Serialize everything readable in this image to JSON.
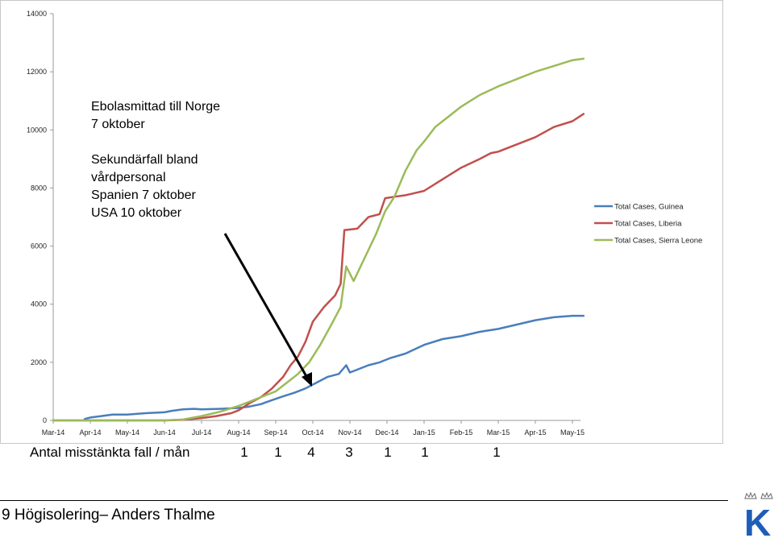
{
  "chart_data": {
    "type": "line",
    "y_ticks": [
      "0",
      "2000",
      "4000",
      "6000",
      "8000",
      "10000",
      "12000",
      "14000"
    ],
    "ylim": [
      0,
      14000
    ],
    "x_ticks": [
      "Mar-14",
      "Apr-14",
      "May-14",
      "Jun-14",
      "Jul-14",
      "Aug-14",
      "Sep-14",
      "Oct-14",
      "Nov-14",
      "Dec-14",
      "Jan-15",
      "Feb-15",
      "Mar-15",
      "Apr-15",
      "May-15"
    ],
    "legend_position": "right",
    "series": [
      {
        "name": "Total Cases, Guinea",
        "color": "#4a7ebb",
        "x": [
          0.85,
          1.0,
          1.3,
          1.6,
          2.0,
          2.5,
          3.0,
          3.2,
          3.5,
          3.8,
          4.0,
          4.5,
          5.0,
          5.3,
          5.6,
          5.9,
          6.2,
          6.5,
          6.8,
          7.1,
          7.4,
          7.7,
          7.9,
          8.0,
          8.5,
          8.8,
          9.1,
          9.5,
          10.0,
          10.5,
          11.0,
          11.5,
          12.0,
          12.5,
          13.0,
          13.5,
          14.0,
          14.3
        ],
        "y": [
          50,
          100,
          150,
          200,
          200,
          250,
          280,
          330,
          380,
          400,
          380,
          400,
          430,
          480,
          560,
          700,
          830,
          950,
          1100,
          1300,
          1500,
          1600,
          1900,
          1650,
          1900,
          2000,
          2150,
          2300,
          2600,
          2800,
          2900,
          3050,
          3150,
          3300,
          3450,
          3550,
          3600,
          3600
        ]
      },
      {
        "name": "Total Cases, Liberia",
        "color": "#c0504d",
        "x": [
          0,
          3.0,
          3.5,
          4.0,
          4.4,
          4.8,
          5.0,
          5.3,
          5.6,
          5.9,
          6.2,
          6.4,
          6.6,
          6.8,
          7.0,
          7.3,
          7.6,
          7.75,
          7.85,
          8.2,
          8.5,
          8.8,
          8.95,
          9.2,
          9.5,
          10.0,
          10.5,
          11.0,
          11.5,
          11.8,
          12.0,
          12.5,
          13.0,
          13.5,
          14.0,
          14.3
        ],
        "y": [
          0,
          0,
          20,
          80,
          150,
          250,
          350,
          600,
          800,
          1100,
          1500,
          1900,
          2200,
          2700,
          3400,
          3900,
          4300,
          4700,
          6550,
          6600,
          7000,
          7100,
          7650,
          7700,
          7750,
          7900,
          8300,
          8700,
          9000,
          9200,
          9250,
          9500,
          9750,
          10100,
          10300,
          10550
        ]
      },
      {
        "name": "Total Cases, Sierra Leone",
        "color": "#9bbb59",
        "x": [
          0,
          3.0,
          3.5,
          4.0,
          4.5,
          5.0,
          5.4,
          5.8,
          6.0,
          6.3,
          6.6,
          6.9,
          7.2,
          7.5,
          7.75,
          7.9,
          8.1,
          8.4,
          8.7,
          8.95,
          9.2,
          9.5,
          9.8,
          10.0,
          10.3,
          10.6,
          11.0,
          11.5,
          12.0,
          12.5,
          13.0,
          13.5,
          14.0,
          14.3
        ],
        "y": [
          0,
          0,
          30,
          150,
          300,
          500,
          700,
          900,
          1000,
          1300,
          1600,
          2000,
          2600,
          3300,
          3900,
          5300,
          4800,
          5600,
          6400,
          7200,
          7700,
          8600,
          9300,
          9600,
          10100,
          10400,
          10800,
          11200,
          11500,
          11750,
          12000,
          12200,
          12400,
          12450
        ]
      }
    ]
  },
  "annotation": {
    "line1": "Ebolasmittad till Norge",
    "line2": "7 oktober",
    "line3": "Sekundärfall bland",
    "line4": "vårdpersonal",
    "line5": "Spanien 7 oktober",
    "line6": "USA 10 oktober"
  },
  "suspected": {
    "label": "Antal misstänkta fall / mån",
    "counts": [
      "1",
      "1",
      "4",
      "3",
      "1",
      "1",
      "1"
    ]
  },
  "footer": {
    "text": "9 Högisolering– Anders Thalme"
  },
  "logo": {
    "letter": "K",
    "color": "#1e5eb8"
  }
}
